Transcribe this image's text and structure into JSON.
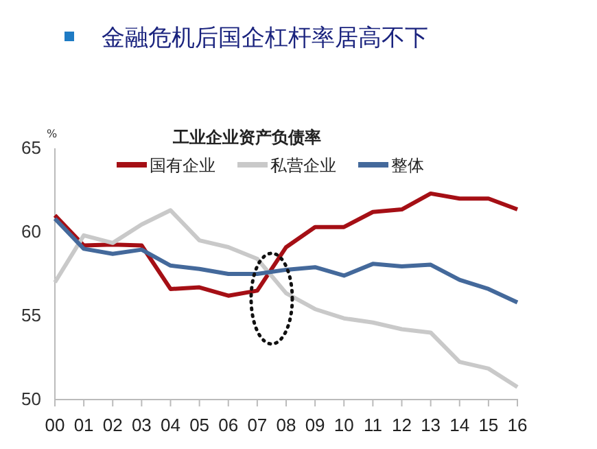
{
  "chart_data": {
    "type": "line",
    "title": "金融危机后国企杠杆率居高不下",
    "subtitle": "工业企业资产负债率",
    "ylabel": "%",
    "categories": [
      "00",
      "01",
      "02",
      "03",
      "04",
      "05",
      "06",
      "07",
      "08",
      "09",
      "10",
      "11",
      "12",
      "13",
      "14",
      "15",
      "16"
    ],
    "series": [
      {
        "name": "国有企业",
        "color": "#a50f15",
        "values": [
          61.0,
          59.2,
          59.25,
          59.2,
          56.6,
          56.7,
          56.2,
          56.5,
          59.1,
          60.3,
          60.3,
          61.2,
          61.35,
          62.3,
          62.0,
          62.0,
          61.35
        ]
      },
      {
        "name": "私营企业",
        "color": "#c9c9c9",
        "values": [
          57.0,
          59.8,
          59.35,
          60.45,
          61.3,
          59.5,
          59.1,
          58.4,
          56.35,
          55.4,
          54.85,
          54.6,
          54.2,
          54.0,
          52.25,
          51.85,
          50.75
        ]
      },
      {
        "name": "整体",
        "color": "#44699b",
        "values": [
          60.8,
          59.0,
          58.7,
          58.95,
          58.0,
          57.8,
          57.5,
          57.5,
          57.75,
          57.9,
          57.4,
          58.1,
          57.95,
          58.05,
          57.15,
          56.6,
          55.8
        ]
      }
    ],
    "ylim": [
      50,
      65
    ],
    "yticks": [
      50,
      55,
      60,
      65
    ],
    "grid": false,
    "legend": "top",
    "marker": "none",
    "line_style": "solid"
  }
}
